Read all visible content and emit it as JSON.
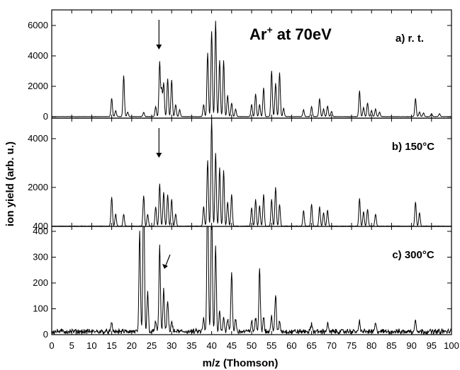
{
  "chart_data": {
    "type": "line",
    "headline": {
      "main": "Ar",
      "sup": "+",
      "rest": " at 70eV"
    },
    "xlabel": "m/z (Thomson)",
    "ylabel": "ion yield (arb. u.)",
    "xlim": [
      0,
      100
    ],
    "x_ticks": [
      "0",
      "5",
      "10",
      "15",
      "20",
      "25",
      "30",
      "35",
      "40",
      "45",
      "50",
      "55",
      "60",
      "65",
      "70",
      "75",
      "80",
      "85",
      "90",
      "95",
      "100"
    ],
    "panels": [
      {
        "label": "a) r. t.",
        "ylim": [
          0,
          6500
        ],
        "y_ticks": [
          "0",
          "2000",
          "4000",
          "6000"
        ],
        "arrow_x": 27,
        "noise": 20,
        "peaks": [
          [
            15,
            1200
          ],
          [
            16,
            400
          ],
          [
            18,
            2700
          ],
          [
            19,
            300
          ],
          [
            23,
            280
          ],
          [
            26,
            650
          ],
          [
            27,
            3600
          ],
          [
            27.5,
            1800
          ],
          [
            28,
            2200
          ],
          [
            29,
            2500
          ],
          [
            30,
            2400
          ],
          [
            31,
            800
          ],
          [
            32,
            450
          ],
          [
            38,
            800
          ],
          [
            39,
            4200
          ],
          [
            40,
            5600
          ],
          [
            41,
            6300
          ],
          [
            42,
            3700
          ],
          [
            43,
            3700
          ],
          [
            44,
            1400
          ],
          [
            45,
            900
          ],
          [
            46,
            500
          ],
          [
            50,
            800
          ],
          [
            51,
            1500
          ],
          [
            52,
            800
          ],
          [
            53,
            1900
          ],
          [
            55,
            3000
          ],
          [
            56,
            2200
          ],
          [
            57,
            2900
          ],
          [
            58,
            550
          ],
          [
            63,
            450
          ],
          [
            65,
            650
          ],
          [
            67,
            1200
          ],
          [
            68,
            500
          ],
          [
            69,
            700
          ],
          [
            70,
            350
          ],
          [
            77,
            1700
          ],
          [
            78,
            600
          ],
          [
            79,
            900
          ],
          [
            80,
            400
          ],
          [
            81,
            500
          ],
          [
            82,
            300
          ],
          [
            91,
            1200
          ],
          [
            92,
            300
          ],
          [
            93,
            250
          ],
          [
            95,
            200
          ],
          [
            97,
            200
          ]
        ]
      },
      {
        "label": "b) 150°C",
        "ylim": [
          400,
          4700
        ],
        "y_ticks": [
          "400",
          "2000",
          "4000"
        ],
        "arrow_x": 27,
        "noise": 20,
        "peaks": [
          [
            15,
            1200
          ],
          [
            16,
            500
          ],
          [
            18,
            500
          ],
          [
            23,
            1250
          ],
          [
            24,
            500
          ],
          [
            26,
            800
          ],
          [
            27,
            1750
          ],
          [
            28,
            1400
          ],
          [
            29,
            1300
          ],
          [
            30,
            1100
          ],
          [
            31,
            500
          ],
          [
            38,
            800
          ],
          [
            39,
            2700
          ],
          [
            40,
            4400
          ],
          [
            41,
            3000
          ],
          [
            42,
            2400
          ],
          [
            43,
            2300
          ],
          [
            44,
            1000
          ],
          [
            45,
            1300
          ],
          [
            50,
            750
          ],
          [
            51,
            1100
          ],
          [
            52,
            850
          ],
          [
            53,
            1300
          ],
          [
            55,
            1100
          ],
          [
            56,
            1600
          ],
          [
            57,
            900
          ],
          [
            63,
            650
          ],
          [
            65,
            900
          ],
          [
            67,
            800
          ],
          [
            68,
            550
          ],
          [
            69,
            650
          ],
          [
            77,
            1150
          ],
          [
            78,
            600
          ],
          [
            79,
            700
          ],
          [
            81,
            500
          ],
          [
            91,
            1000
          ],
          [
            92,
            550
          ]
        ]
      },
      {
        "label": "c) 300°C",
        "ylim": [
          0,
          400
        ],
        "y_ticks": [
          "0",
          "100",
          "200",
          "300",
          "400"
        ],
        "arrow_x": 28,
        "noise": 14,
        "peaks": [
          [
            15,
            30
          ],
          [
            22,
            380
          ],
          [
            23,
            600
          ],
          [
            24,
            150
          ],
          [
            26,
            40
          ],
          [
            27,
            340
          ],
          [
            28,
            160
          ],
          [
            29,
            120
          ],
          [
            30,
            40
          ],
          [
            38,
            50
          ],
          [
            39,
            600
          ],
          [
            40,
            500
          ],
          [
            41,
            330
          ],
          [
            42,
            80
          ],
          [
            43,
            60
          ],
          [
            44,
            50
          ],
          [
            45,
            230
          ],
          [
            46,
            50
          ],
          [
            50,
            40
          ],
          [
            51,
            50
          ],
          [
            52,
            250
          ],
          [
            53,
            60
          ],
          [
            55,
            60
          ],
          [
            56,
            140
          ],
          [
            57,
            40
          ],
          [
            65,
            30
          ],
          [
            69,
            30
          ],
          [
            77,
            40
          ],
          [
            81,
            30
          ],
          [
            91,
            50
          ]
        ]
      }
    ],
    "grid": false,
    "line_color": "#000000"
  }
}
